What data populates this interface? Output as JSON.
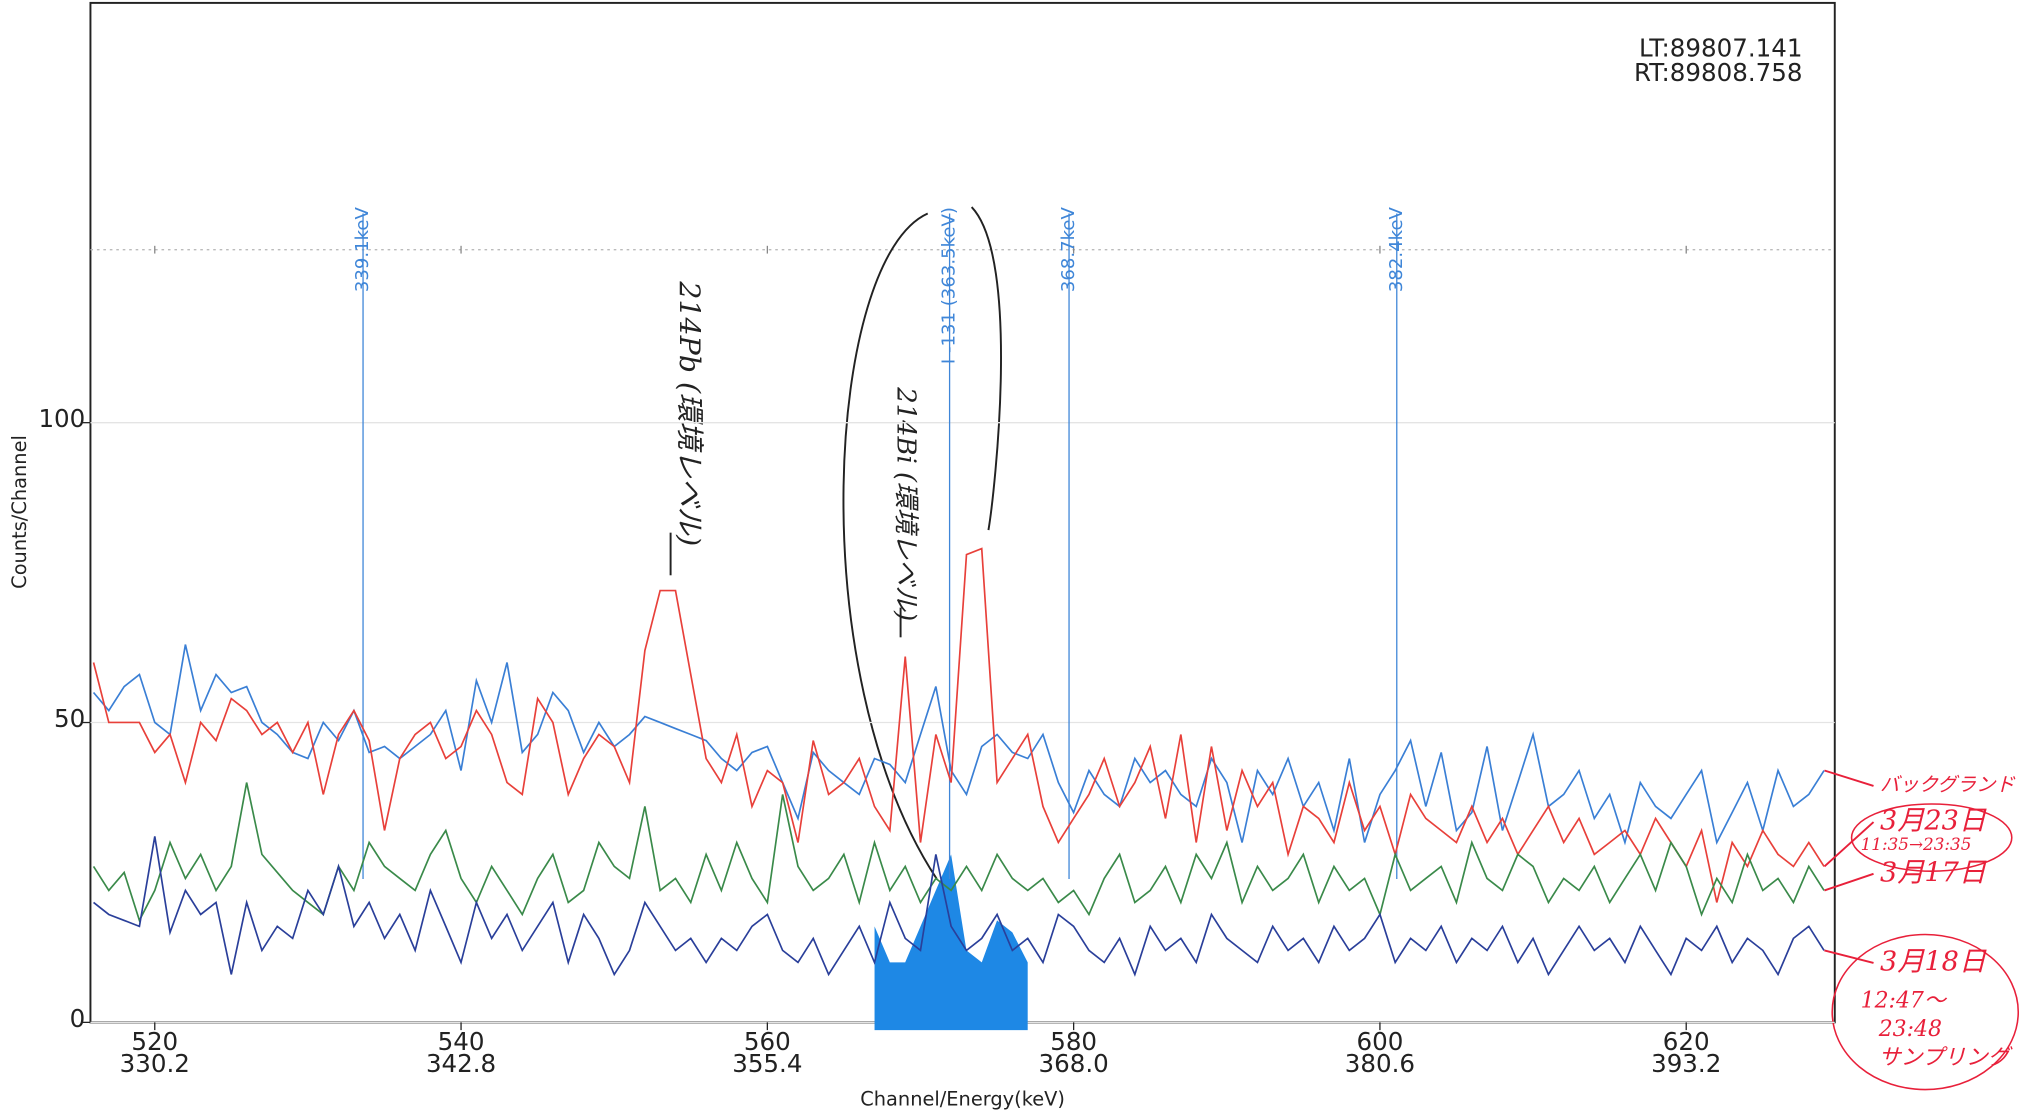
{
  "chart_data": {
    "type": "line",
    "live_time": "LT:89807.141",
    "real_time": "RT:89808.758",
    "xlabel": "Channel/Energy(keV)",
    "ylabel": "Counts/Channel",
    "xlim": [
      515.8,
      629.7
    ],
    "ylim": [
      0,
      170
    ],
    "xticks": [
      520,
      540,
      560,
      580,
      600,
      620
    ],
    "xtick_energies": [
      "330.2",
      "342.8",
      "355.4",
      "368.0",
      "380.6",
      "393.2"
    ],
    "yticks": [
      0,
      50,
      100
    ],
    "markers": [
      {
        "label": "339.1keV",
        "x": 533.6
      },
      {
        "label": "I -131 (363.5keV)",
        "x": 571.9
      },
      {
        "label": "368.7keV",
        "x": 579.7
      },
      {
        "label": "382.4keV",
        "x": 601.1
      }
    ],
    "marker_color": "#3f86d8",
    "x": [
      516,
      517,
      518,
      519,
      520,
      521,
      522,
      523,
      524,
      525,
      526,
      527,
      528,
      529,
      530,
      531,
      532,
      533,
      534,
      535,
      536,
      537,
      538,
      539,
      540,
      541,
      542,
      543,
      544,
      545,
      546,
      547,
      548,
      549,
      550,
      551,
      552,
      553,
      554,
      555,
      556,
      557,
      558,
      559,
      560,
      561,
      562,
      563,
      564,
      565,
      566,
      567,
      568,
      569,
      570,
      571,
      572,
      573,
      574,
      575,
      576,
      577,
      578,
      579,
      580,
      581,
      582,
      583,
      584,
      585,
      586,
      587,
      588,
      589,
      590,
      591,
      592,
      593,
      594,
      595,
      596,
      597,
      598,
      599,
      600,
      601,
      602,
      603,
      604,
      605,
      606,
      607,
      608,
      609,
      610,
      611,
      612,
      613,
      614,
      615,
      616,
      617,
      618,
      619,
      620,
      621,
      622,
      623,
      624,
      625,
      626,
      627,
      628,
      629
    ],
    "series": [
      {
        "name": "バックグランド",
        "color": "#3a7fd5",
        "values": [
          55,
          52,
          56,
          58,
          50,
          48,
          63,
          52,
          58,
          55,
          56,
          50,
          48,
          45,
          44,
          50,
          47,
          52,
          45,
          46,
          44,
          46,
          48,
          52,
          42,
          57,
          50,
          60,
          45,
          48,
          55,
          52,
          45,
          50,
          46,
          48,
          51,
          50,
          49,
          48,
          47,
          44,
          42,
          45,
          46,
          40,
          34,
          45,
          42,
          40,
          38,
          44,
          43,
          40,
          48,
          56,
          42,
          38,
          46,
          48,
          45,
          44,
          48,
          40,
          35,
          42,
          38,
          36,
          44,
          40,
          42,
          38,
          36,
          44,
          40,
          30,
          42,
          38,
          44,
          36,
          40,
          32,
          44,
          30,
          38,
          42,
          47,
          36,
          45,
          32,
          35,
          46,
          32,
          40,
          48,
          36,
          38,
          42,
          34,
          38,
          30,
          40,
          36,
          34,
          38,
          42,
          30,
          35,
          40,
          32,
          42,
          36,
          38,
          42
        ]
      },
      {
        "name": "3月23日",
        "note": [
          "11:35→23:35"
        ],
        "color": "#e8403a",
        "values": [
          60,
          50,
          50,
          50,
          45,
          48,
          40,
          50,
          47,
          54,
          52,
          48,
          50,
          45,
          50,
          38,
          48,
          52,
          47,
          32,
          44,
          48,
          50,
          44,
          46,
          52,
          48,
          40,
          38,
          54,
          50,
          38,
          44,
          48,
          46,
          40,
          62,
          72,
          72,
          58,
          44,
          40,
          48,
          36,
          42,
          40,
          30,
          47,
          38,
          40,
          44,
          36,
          32,
          61,
          30,
          48,
          40,
          78,
          79,
          40,
          44,
          48,
          36,
          30,
          34,
          38,
          44,
          36,
          40,
          46,
          34,
          48,
          30,
          46,
          32,
          42,
          36,
          40,
          28,
          36,
          34,
          30,
          40,
          32,
          36,
          28,
          38,
          34,
          32,
          30,
          36,
          30,
          34,
          28,
          32,
          36,
          30,
          34,
          28,
          30,
          32,
          28,
          34,
          30,
          26,
          32,
          20,
          30,
          26,
          32,
          28,
          26,
          30,
          26
        ]
      },
      {
        "name": "3月17日",
        "color": "#3a8a4a",
        "values": [
          26,
          22,
          25,
          17,
          22,
          30,
          24,
          28,
          22,
          26,
          40,
          28,
          25,
          22,
          20,
          18,
          26,
          22,
          30,
          26,
          24,
          22,
          28,
          32,
          24,
          20,
          26,
          22,
          18,
          24,
          28,
          20,
          22,
          30,
          26,
          24,
          36,
          22,
          24,
          20,
          28,
          22,
          30,
          24,
          20,
          38,
          26,
          22,
          24,
          28,
          20,
          30,
          22,
          26,
          20,
          24,
          22,
          26,
          22,
          28,
          24,
          22,
          24,
          20,
          22,
          18,
          24,
          28,
          20,
          22,
          26,
          20,
          28,
          24,
          30,
          20,
          26,
          22,
          24,
          28,
          20,
          26,
          22,
          24,
          18,
          28,
          22,
          24,
          26,
          20,
          30,
          24,
          22,
          28,
          26,
          20,
          24,
          22,
          26,
          20,
          24,
          28,
          22,
          30,
          26,
          18,
          24,
          20,
          28,
          22,
          24,
          20,
          26,
          22
        ]
      },
      {
        "name": "3月18日",
        "note": [
          "12:47～",
          "23:48",
          "サンプリング"
        ],
        "color": "#2a3f9a",
        "values": [
          20,
          18,
          17,
          16,
          31,
          15,
          22,
          18,
          20,
          8,
          20,
          12,
          16,
          14,
          22,
          18,
          26,
          16,
          20,
          14,
          18,
          12,
          22,
          16,
          10,
          20,
          14,
          18,
          12,
          16,
          20,
          10,
          18,
          14,
          8,
          12,
          20,
          16,
          12,
          14,
          10,
          14,
          12,
          16,
          18,
          12,
          10,
          14,
          8,
          12,
          16,
          10,
          20,
          14,
          12,
          28,
          16,
          12,
          14,
          18,
          12,
          14,
          10,
          18,
          16,
          12,
          10,
          14,
          8,
          16,
          12,
          14,
          10,
          18,
          14,
          12,
          10,
          16,
          12,
          14,
          10,
          16,
          12,
          14,
          18,
          10,
          14,
          12,
          16,
          10,
          14,
          12,
          16,
          10,
          14,
          8,
          12,
          16,
          12,
          14,
          10,
          16,
          12,
          8,
          14,
          12,
          16,
          10,
          14,
          12,
          8,
          14,
          16,
          12
        ]
      }
    ],
    "roi": {
      "color": "#1e88e5",
      "x": [
        567,
        568,
        569,
        570,
        571,
        572,
        573,
        574,
        575,
        576,
        577
      ],
      "values": [
        16,
        10,
        10,
        16,
        22,
        28,
        12,
        10,
        17,
        15,
        10
      ]
    },
    "annotations": [
      {
        "text": "214Pb (環境レベル)"
      },
      {
        "text": "214Bi (環境レベル)"
      }
    ],
    "annotation_color": "#e8203a"
  }
}
